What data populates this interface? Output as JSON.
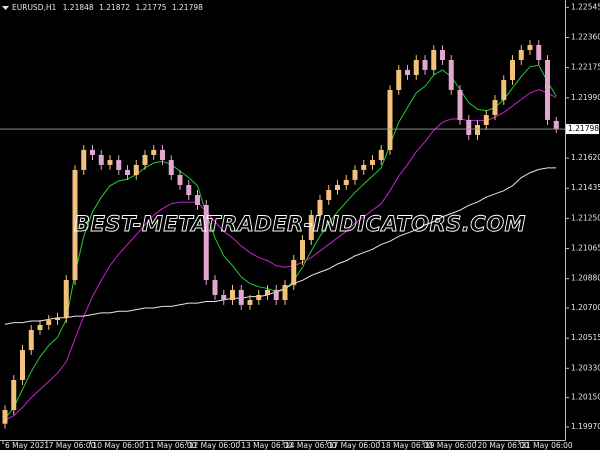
{
  "chart_data": {
    "type": "candlestick",
    "symbol": "EURUSD,H1",
    "watermark": "BEST-METATRADER-INDICATORS.COM",
    "up_color": "#f2c27c",
    "down_color": "#e3a6cf",
    "categories": [
      "6 May 2021",
      null,
      null,
      null,
      null,
      "7 May 06:00",
      null,
      null,
      null,
      null,
      "10 May 06:00",
      null,
      null,
      null,
      null,
      null,
      "11 May 06:00",
      null,
      null,
      null,
      null,
      "12 May 06:00",
      null,
      null,
      null,
      null,
      null,
      "13 May 06:00",
      null,
      null,
      null,
      null,
      "14 May 06:00",
      null,
      null,
      null,
      null,
      "17 May 06:00",
      null,
      null,
      null,
      null,
      null,
      "18 May 06:00",
      null,
      null,
      null,
      null,
      "19 May 06:00",
      null,
      null,
      null,
      null,
      null,
      "20 May 06:00",
      null,
      null,
      null,
      null,
      "21 May 06:00",
      null,
      null,
      null,
      null
    ],
    "open": [
      1.1999,
      1.20074,
      1.20258,
      1.20442,
      1.20565,
      1.20596,
      1.20626,
      1.20639,
      1.20872,
      1.21547,
      1.2167,
      1.21639,
      1.21578,
      1.21608,
      1.21547,
      1.21516,
      1.21578,
      1.21639,
      1.2167,
      1.21608,
      1.21516,
      1.21455,
      1.21393,
      1.21332,
      1.20872,
      1.2078,
      1.20749,
      1.20811,
      1.20719,
      1.20749,
      1.2078,
      1.20811,
      1.20749,
      1.20841,
      1.20995,
      1.21117,
      1.21271,
      1.21363,
      1.21424,
      1.21455,
      1.21486,
      1.21547,
      1.21578,
      1.21608,
      1.2167,
      1.22038,
      1.22161,
      1.2213,
      1.22222,
      1.22161,
      1.22283,
      1.22222,
      1.22038,
      1.21854,
      1.21762,
      1.21823,
      1.21884,
      1.21976,
      1.22099,
      1.22222,
      1.22283,
      1.22314,
      1.22222,
      1.21848
    ],
    "high": [
      1.20104,
      1.20288,
      1.20472,
      1.20595,
      1.20626,
      1.20656,
      1.20669,
      1.20902,
      1.21577,
      1.217,
      1.217,
      1.21669,
      1.21638,
      1.21638,
      1.21577,
      1.21608,
      1.21669,
      1.217,
      1.217,
      1.21638,
      1.21546,
      1.21485,
      1.21423,
      1.21362,
      1.20902,
      1.2081,
      1.20841,
      1.20841,
      1.20779,
      1.2081,
      1.20841,
      1.20841,
      1.20871,
      1.21025,
      1.21147,
      1.21301,
      1.21393,
      1.21454,
      1.21485,
      1.21516,
      1.21577,
      1.21608,
      1.21638,
      1.217,
      1.22068,
      1.22191,
      1.22191,
      1.22252,
      1.22252,
      1.22313,
      1.22313,
      1.22252,
      1.22068,
      1.21884,
      1.21853,
      1.21914,
      1.22006,
      1.22129,
      1.22252,
      1.22313,
      1.22344,
      1.22344,
      1.22252,
      1.21872
    ],
    "low": [
      1.1996,
      1.20044,
      1.20228,
      1.20412,
      1.20535,
      1.20566,
      1.20596,
      1.20609,
      1.20842,
      1.21517,
      1.21609,
      1.21548,
      1.21548,
      1.21517,
      1.21486,
      1.21486,
      1.21548,
      1.21609,
      1.21578,
      1.21486,
      1.21425,
      1.21363,
      1.21302,
      1.20842,
      1.2075,
      1.20719,
      1.20719,
      1.20689,
      1.20689,
      1.20719,
      1.2075,
      1.20719,
      1.20719,
      1.20811,
      1.20965,
      1.21087,
      1.21241,
      1.21333,
      1.21394,
      1.21425,
      1.21456,
      1.21517,
      1.21548,
      1.21578,
      1.2164,
      1.22008,
      1.221,
      1.221,
      1.22131,
      1.22131,
      1.22192,
      1.22008,
      1.21824,
      1.21732,
      1.21732,
      1.21793,
      1.21854,
      1.21946,
      1.22069,
      1.22192,
      1.22253,
      1.22192,
      1.21824,
      1.21775
    ],
    "close": [
      1.20074,
      1.20258,
      1.20442,
      1.20565,
      1.20596,
      1.20626,
      1.20639,
      1.20872,
      1.21547,
      1.2167,
      1.21639,
      1.21578,
      1.21608,
      1.21547,
      1.21516,
      1.21578,
      1.21639,
      1.2167,
      1.21608,
      1.21516,
      1.21455,
      1.21393,
      1.21332,
      1.20872,
      1.2078,
      1.20749,
      1.20811,
      1.20719,
      1.20749,
      1.2078,
      1.20811,
      1.20749,
      1.20841,
      1.20995,
      1.21117,
      1.21271,
      1.21363,
      1.21424,
      1.21455,
      1.21486,
      1.21547,
      1.21578,
      1.21608,
      1.2167,
      1.22038,
      1.22161,
      1.2213,
      1.22222,
      1.22161,
      1.22283,
      1.22222,
      1.22038,
      1.21854,
      1.21762,
      1.21823,
      1.21884,
      1.21976,
      1.22099,
      1.22222,
      1.22283,
      1.22314,
      1.22222,
      1.21854,
      1.21798
    ],
    "series": [
      {
        "color": "#22cc33",
        "values": [
          1.2002,
          1.2009,
          1.202,
          1.2031,
          1.204,
          1.2047,
          1.2052,
          1.2063,
          1.2091,
          1.2114,
          1.2129,
          1.2138,
          1.2145,
          1.2148,
          1.2149,
          1.2152,
          1.2156,
          1.2159,
          1.216,
          1.2158,
          1.2154,
          1.215,
          1.2145,
          1.2128,
          1.2113,
          1.2102,
          1.2096,
          1.2089,
          1.2085,
          1.2083,
          1.2082,
          1.208,
          1.2081,
          1.2087,
          1.2095,
          1.2105,
          1.2114,
          1.2122,
          1.2129,
          1.2135,
          1.2141,
          1.2146,
          1.2151,
          1.2156,
          1.217,
          1.2184,
          1.2193,
          1.2202,
          1.2206,
          1.2213,
          1.2216,
          1.2212,
          1.2204,
          1.2196,
          1.2192,
          1.2191,
          1.2193,
          1.2198,
          1.2205,
          1.2212,
          1.2218,
          1.2219,
          1.2209,
          1.22
        ]
      },
      {
        "color": "#cc22cc",
        "values": [
          1.2001,
          1.2004,
          1.2009,
          1.2015,
          1.202,
          1.2025,
          1.203,
          1.2037,
          1.2051,
          1.2065,
          1.2077,
          1.2087,
          1.2096,
          1.2103,
          1.2109,
          1.2115,
          1.2121,
          1.2127,
          1.2131,
          1.2134,
          1.2135,
          1.2135,
          1.2135,
          1.2129,
          1.2123,
          1.2117,
          1.2113,
          1.2108,
          1.2104,
          1.2101,
          1.2099,
          1.2096,
          1.2095,
          1.2096,
          1.2098,
          1.2101,
          1.2105,
          1.2109,
          1.2113,
          1.2117,
          1.2122,
          1.2126,
          1.213,
          1.2134,
          1.2142,
          1.2151,
          1.2158,
          1.2166,
          1.2172,
          1.2179,
          1.2184,
          1.2186,
          1.2186,
          1.2185,
          1.2185,
          1.2185,
          1.2187,
          1.219,
          1.2194,
          1.2198,
          1.2202,
          1.2204,
          1.2202,
          1.2199
        ]
      },
      {
        "color": "#e8e8e8",
        "values": [
          1.206,
          1.2061,
          1.2061,
          1.2062,
          1.2062,
          1.2063,
          1.2064,
          1.2064,
          1.2065,
          1.2065,
          1.2066,
          1.2067,
          1.2067,
          1.2068,
          1.2068,
          1.2069,
          1.207,
          1.207,
          1.2071,
          1.2071,
          1.2072,
          1.2073,
          1.2073,
          1.2074,
          1.2074,
          1.2075,
          1.2076,
          1.2076,
          1.2077,
          1.2077,
          1.2078,
          1.208,
          1.2082,
          1.2085,
          1.2087,
          1.209,
          1.2092,
          1.2094,
          1.2097,
          1.2099,
          1.2102,
          1.2104,
          1.2106,
          1.2109,
          1.2111,
          1.2114,
          1.2116,
          1.2118,
          1.2121,
          1.2123,
          1.2126,
          1.2128,
          1.213,
          1.2133,
          1.2135,
          1.2138,
          1.214,
          1.2142,
          1.2145,
          1.215,
          1.2153,
          1.2155,
          1.2156,
          1.2156
        ]
      }
    ],
    "ylim": [
      1.1989,
      1.2259
    ],
    "yticks": [
      1.22545,
      {
        "value": 1.2236,
        "label": "1.22360"
      },
      {
        "value": 1.22175,
        "label": "1.22175"
      },
      {
        "value": 1.2199,
        "label": "1.21990"
      },
      {
        "value": 1.2162,
        "label": "1.21620"
      },
      1.21435,
      {
        "value": 1.2125,
        "label": "1.21250"
      },
      1.21065,
      {
        "value": 1.2088,
        "label": "1.20880"
      },
      {
        "value": 1.207,
        "label": "1.20700"
      },
      1.20515,
      {
        "value": 1.2033,
        "label": "1.20330"
      },
      {
        "value": 1.2015,
        "label": "1.20150"
      },
      {
        "value": 1.1997,
        "label": "1.19970"
      }
    ]
  }
}
